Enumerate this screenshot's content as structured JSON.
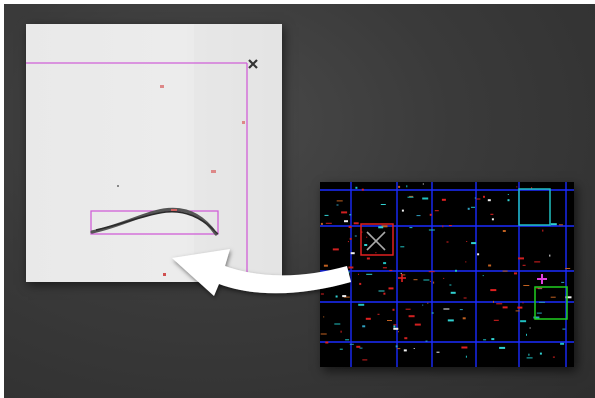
{
  "scene": {
    "background": "#3a3a3a",
    "zoom_panel": {
      "name": "zoomed-micrograph-view",
      "paper_color": "#ebebeb",
      "roi_color": "#d060d8"
    },
    "map_panel": {
      "name": "overview-grid-map",
      "grid_color": "#1a2cff",
      "selection_color": "#e02020",
      "cyan_box_color": "#20c0c0",
      "green_box_color": "#20d020",
      "magenta_marker_color": "#e040e0"
    },
    "arrow": {
      "name": "zoom-link-arrow",
      "color": "#ffffff"
    }
  }
}
